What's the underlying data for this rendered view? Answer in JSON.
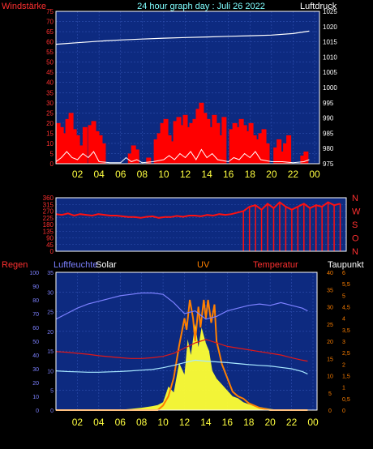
{
  "title": "24 hour graph day : Juli 26 2022",
  "colors": {
    "background": "#000000",
    "plot_bg": "#0d2a80",
    "grid": "#3050b0",
    "wind": "#ff0000",
    "gust": "#ffffff",
    "pressure": "#ffffff",
    "direction": "#ff1010",
    "humidity": "#7c80ff",
    "temperature": "#e01818",
    "dewpoint": "#a8e8ff",
    "solar": "#ffff33",
    "uv": "#ff8000",
    "left_axis_red": "#ff3030",
    "right_axis_orange": "#ff8000",
    "x_ticks": "#ffff40"
  },
  "chart_data": [
    {
      "type": "bar",
      "name": "wind-pressure",
      "left_axis_label": "Windstärke",
      "right_axis_label": "Luftdruck",
      "left_ticks": [
        "0",
        "5",
        "10",
        "15",
        "20",
        "25",
        "30",
        "35",
        "40",
        "45",
        "50",
        "55",
        "60",
        "65",
        "70",
        "75"
      ],
      "right_ticks": [
        "975",
        "980",
        "985",
        "990",
        "995",
        "1000",
        "1005",
        "1010",
        "1015",
        "1020",
        "1025"
      ],
      "ylim_left": [
        0,
        75
      ],
      "ylim_right": [
        975,
        1025
      ],
      "x_ticks": [
        "02",
        "04",
        "06",
        "08",
        "10",
        "12",
        "14",
        "16",
        "18",
        "20",
        "22",
        "00"
      ],
      "series": [
        {
          "name": "Luftdruck",
          "type": "line",
          "x": [
            0,
            2,
            4,
            6,
            8,
            10,
            12,
            14,
            16,
            18,
            20,
            22,
            23.5
          ],
          "y": [
            1014.2,
            1014.7,
            1015.2,
            1015.6,
            1015.9,
            1016.2,
            1016.4,
            1016.6,
            1016.8,
            1017.0,
            1017.2,
            1017.7,
            1018.5
          ]
        },
        {
          "name": "Windstärke",
          "type": "bar",
          "x": [
            0.2,
            0.5,
            0.8,
            1.1,
            1.4,
            1.7,
            2.0,
            2.4,
            2.7,
            3.2,
            3.5,
            3.8,
            4.1,
            4.4,
            6.9,
            7.2,
            7.5,
            8.6,
            9.3,
            9.6,
            9.9,
            10.2,
            10.5,
            10.8,
            11.1,
            11.4,
            11.7,
            12.0,
            12.3,
            12.6,
            12.9,
            13.2,
            13.5,
            13.8,
            14.1,
            14.4,
            14.7,
            15.0,
            15.3,
            15.6,
            16.3,
            16.6,
            16.9,
            17.2,
            17.5,
            17.8,
            18.1,
            18.4,
            18.7,
            19.0,
            19.3,
            19.6,
            20.4,
            20.7,
            21.0,
            21.3,
            21.6,
            22.9,
            23.2
          ],
          "y": [
            20,
            18,
            15,
            22,
            25,
            17,
            14,
            9,
            18,
            19,
            21,
            16,
            14,
            10,
            5,
            9,
            7,
            3,
            12,
            15,
            20,
            22,
            14,
            11,
            21,
            23,
            19,
            24,
            18,
            20,
            22,
            27,
            30,
            25,
            22,
            18,
            24,
            20,
            14,
            23,
            17,
            20,
            18,
            22,
            19,
            16,
            20,
            14,
            12,
            15,
            17,
            10,
            8,
            12,
            6,
            10,
            14,
            4,
            6
          ]
        },
        {
          "name": "Böen",
          "type": "line",
          "x": [
            0,
            0.5,
            1,
            1.5,
            2,
            2.5,
            3,
            3.5,
            4,
            5,
            6,
            6.5,
            7,
            7.5,
            8,
            9,
            10,
            10.5,
            11,
            11.5,
            12,
            12.5,
            13,
            13.5,
            14,
            14.5,
            15,
            16,
            16.5,
            17,
            17.5,
            18,
            18.5,
            19,
            20,
            21,
            22,
            23,
            23.5
          ],
          "y": [
            1,
            3,
            6,
            3,
            2,
            5,
            3,
            6,
            1,
            0.5,
            0.5,
            3,
            1,
            2,
            0.5,
            1,
            2,
            4,
            2,
            5,
            3,
            6,
            2,
            7,
            3,
            5,
            2,
            1,
            3,
            2,
            5,
            3,
            6,
            2,
            1,
            1,
            0.5,
            1,
            2
          ]
        }
      ]
    },
    {
      "type": "scatter",
      "name": "wind-direction",
      "left_ticks": [
        "0",
        "45",
        "90",
        "135",
        "180",
        "225",
        "270",
        "315",
        "360"
      ],
      "right_ticks": [
        "N",
        "W",
        "S",
        "O",
        "N"
      ],
      "ylim": [
        0,
        360
      ],
      "x_ticks": [
        "02",
        "04",
        "06",
        "08",
        "10",
        "12",
        "14",
        "16",
        "18",
        "20",
        "22",
        "00"
      ],
      "series": [
        {
          "name": "Windrichtung",
          "x": [
            0,
            0.5,
            1,
            1.5,
            2,
            2.5,
            3,
            3.5,
            4,
            4.5,
            5,
            5.5,
            6,
            6.5,
            7,
            7.5,
            8,
            8.5,
            9,
            9.5,
            10,
            10.5,
            11,
            11.5,
            12,
            12.5,
            13,
            13.5,
            14,
            14.5,
            15,
            15.5,
            16,
            16.5,
            17,
            17.5,
            18,
            18.5,
            19,
            19.5,
            20,
            20.5,
            21,
            21.5,
            22,
            22.5,
            23,
            23.5
          ],
          "y": [
            250,
            245,
            255,
            240,
            250,
            245,
            240,
            250,
            245,
            240,
            240,
            235,
            230,
            230,
            225,
            232,
            235,
            225,
            230,
            230,
            238,
            232,
            240,
            240,
            235,
            245,
            240,
            250,
            245,
            250,
            260,
            270,
            300,
            310,
            280,
            320,
            290,
            330,
            300,
            280,
            300,
            320,
            290,
            310,
            300,
            330,
            310,
            320
          ]
        }
      ]
    },
    {
      "type": "line",
      "name": "climate",
      "labels": {
        "regen": "Regen",
        "humidity": "Luftfeuchte",
        "solar": "Solar",
        "uv": "UV",
        "temperature": "Temperatur",
        "dewpoint": "Taupunkt"
      },
      "regen_ticks": [
        "0",
        "10",
        "20",
        "30",
        "40",
        "50",
        "60",
        "70",
        "80",
        "90",
        "100"
      ],
      "humidity_ticks": [
        "0",
        "5",
        "10",
        "15",
        "20",
        "25",
        "30",
        "35"
      ],
      "temperature_ticks": [
        "0",
        "5",
        "10",
        "15",
        "20",
        "25",
        "30",
        "35",
        "40"
      ],
      "uv_ticks": [
        "0",
        "0,5",
        "1",
        "1,5",
        "2",
        "2,5",
        "3",
        "3,5",
        "4",
        "4,5",
        "5",
        "5,5",
        "6"
      ],
      "ylim_left": [
        0,
        35
      ],
      "ylim_uv": [
        0,
        6
      ],
      "x_ticks": [
        "02",
        "04",
        "06",
        "08",
        "10",
        "12",
        "14",
        "16",
        "18",
        "20",
        "22",
        "00"
      ],
      "series": [
        {
          "name": "Luftfeuchte",
          "x": [
            0,
            1,
            2,
            3,
            4,
            5,
            6,
            7,
            8,
            9,
            10,
            11,
            12,
            13,
            14,
            15,
            16,
            17,
            18,
            19,
            20,
            21,
            22,
            23,
            23.5
          ],
          "y": [
            66,
            70,
            74,
            77,
            79,
            81,
            83,
            84,
            85,
            85,
            84,
            78,
            70,
            72,
            66,
            68,
            72,
            74,
            76,
            77,
            76,
            78,
            76,
            74,
            72
          ]
        },
        {
          "name": "Temperatur",
          "x": [
            0,
            1,
            2,
            3,
            4,
            5,
            6,
            7,
            8,
            9,
            10,
            11,
            12,
            13,
            14,
            15,
            16,
            17,
            18,
            19,
            20,
            21,
            22,
            23,
            23.5
          ],
          "y": [
            17,
            16.8,
            16.5,
            16.2,
            15.8,
            15.5,
            15.2,
            15.0,
            15.0,
            15.2,
            15.6,
            16.5,
            18.0,
            19.5,
            20.5,
            19.5,
            18.5,
            18.0,
            17.5,
            17.0,
            16.5,
            16.0,
            15.2,
            14.5,
            14.2
          ]
        },
        {
          "name": "Taupunkt",
          "x": [
            0,
            1,
            2,
            3,
            4,
            5,
            6,
            7,
            8,
            9,
            10,
            11,
            12,
            13,
            14,
            15,
            16,
            17,
            18,
            19,
            20,
            21,
            22,
            23,
            23.5
          ],
          "y": [
            11.4,
            11.2,
            11.1,
            11.0,
            11.0,
            11.1,
            11.2,
            11.4,
            11.6,
            11.8,
            12.3,
            13.0,
            13.8,
            14.5,
            14.2,
            14.0,
            13.8,
            13.5,
            13.2,
            13.0,
            12.8,
            12.4,
            12.0,
            11.2,
            10.5
          ]
        },
        {
          "name": "Solar",
          "x": [
            0,
            5.5,
            6,
            7,
            8,
            9,
            9.5,
            10,
            10.5,
            11,
            11.5,
            12,
            12.3,
            12.6,
            13,
            13.3,
            13.6,
            14,
            14.3,
            14.6,
            15,
            15.5,
            16,
            16.5,
            17,
            17.5,
            18,
            19,
            20,
            21,
            23.5
          ],
          "y": [
            0,
            0,
            0.1,
            0.3,
            0.6,
            1.0,
            1.3,
            2.0,
            6.0,
            4.5,
            12.0,
            9.0,
            18.0,
            14.0,
            22.0,
            16.0,
            21.0,
            17.0,
            15.0,
            10.0,
            8.0,
            6.5,
            5.0,
            3.5,
            3.0,
            2.0,
            1.5,
            0.8,
            0.3,
            0,
            0
          ]
        },
        {
          "name": "UV",
          "x": [
            0,
            9.5,
            10,
            10.5,
            11,
            11.5,
            12,
            12.2,
            12.5,
            12.8,
            13,
            13.3,
            13.5,
            13.8,
            14,
            14.2,
            14.5,
            14.8,
            15,
            15.5,
            16,
            16.5,
            17,
            17.5,
            18,
            19,
            20,
            23.5
          ],
          "y": [
            0,
            0,
            0.2,
            0.6,
            1.4,
            2.8,
            4.0,
            3.5,
            4.8,
            4.0,
            3.0,
            4.5,
            3.6,
            4.8,
            4.0,
            4.8,
            3.8,
            4.6,
            3.0,
            2.0,
            1.4,
            0.8,
            0.6,
            0.5,
            0.3,
            0.1,
            0,
            0
          ]
        }
      ]
    }
  ]
}
